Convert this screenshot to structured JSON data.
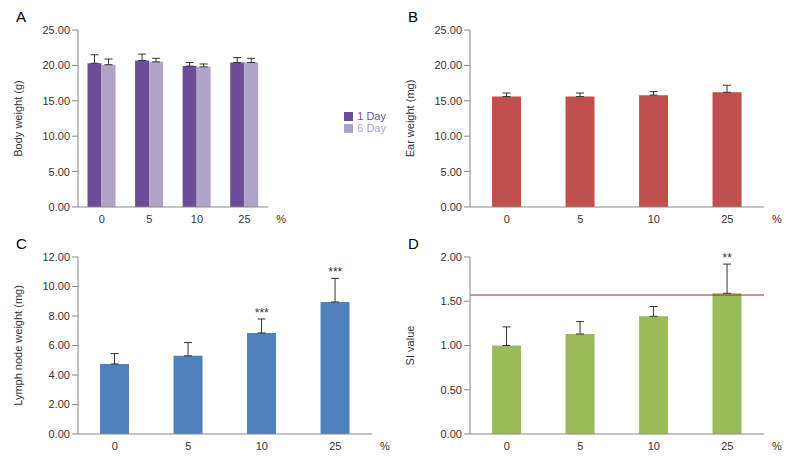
{
  "chart_data": [
    {
      "type": "bar",
      "title": "A",
      "y_label": "Body weight (g)",
      "x_label": "%",
      "categories": [
        "0",
        "5",
        "10",
        "25"
      ],
      "series": [
        {
          "name": "1 Day",
          "color": "#6b4e97",
          "values": [
            20.3,
            20.7,
            19.9,
            20.4
          ],
          "errors": [
            1.2,
            0.9,
            0.5,
            0.7
          ]
        },
        {
          "name": "6 Day",
          "color": "#b0a3c8",
          "values": [
            20.1,
            20.5,
            19.8,
            20.4
          ],
          "errors": [
            0.8,
            0.5,
            0.4,
            0.6
          ]
        }
      ],
      "ylim": [
        0,
        25
      ],
      "yticks": [
        {
          "value": 0,
          "label": "0.00"
        },
        {
          "value": 5,
          "label": "5.00"
        },
        {
          "value": 10,
          "label": "10.00"
        },
        {
          "value": 15,
          "label": "15.00"
        },
        {
          "value": 20,
          "label": "20.00"
        },
        {
          "value": 25,
          "label": "25.00"
        }
      ],
      "legend": "right"
    },
    {
      "type": "bar",
      "title": "B",
      "y_label": "Ear weight (mg)",
      "x_label": "%",
      "categories": [
        "0",
        "5",
        "10",
        "25"
      ],
      "color": "#c0504d",
      "values": [
        15.6,
        15.6,
        15.8,
        16.2
      ],
      "errors": [
        0.5,
        0.5,
        0.5,
        1.0
      ],
      "ylim": [
        0,
        25
      ],
      "yticks": [
        {
          "value": 0,
          "label": "0.00"
        },
        {
          "value": 5,
          "label": "5.00"
        },
        {
          "value": 10,
          "label": "10.00"
        },
        {
          "value": 15,
          "label": "15.00"
        },
        {
          "value": 20,
          "label": "20.00"
        },
        {
          "value": 25,
          "label": "25.00"
        }
      ]
    },
    {
      "type": "bar",
      "title": "C",
      "y_label": "Lymph node weight (mg)",
      "x_label": "%",
      "categories": [
        "0",
        "5",
        "10",
        "25"
      ],
      "color": "#4f81bd",
      "values": [
        4.75,
        5.3,
        6.85,
        8.95
      ],
      "errors": [
        0.7,
        0.9,
        0.95,
        1.6
      ],
      "ylim": [
        0,
        12
      ],
      "yticks": [
        {
          "value": 0,
          "label": "0.00"
        },
        {
          "value": 2,
          "label": "2.00"
        },
        {
          "value": 4,
          "label": "4.00"
        },
        {
          "value": 6,
          "label": "6.00"
        },
        {
          "value": 8,
          "label": "8.00"
        },
        {
          "value": 10,
          "label": "10.00"
        },
        {
          "value": 12,
          "label": "12.00"
        }
      ],
      "annotations": [
        {
          "category": "10",
          "text": "***"
        },
        {
          "category": "25",
          "text": "***"
        }
      ]
    },
    {
      "type": "bar",
      "title": "D",
      "y_label": "SI value",
      "x_label": "%",
      "categories": [
        "0",
        "5",
        "10",
        "25"
      ],
      "color": "#9bbb59",
      "values": [
        1.0,
        1.13,
        1.33,
        1.59
      ],
      "errors": [
        0.21,
        0.14,
        0.11,
        0.33
      ],
      "ylim": [
        0,
        2
      ],
      "yticks": [
        {
          "value": 0,
          "label": "0.00"
        },
        {
          "value": 0.5,
          "label": "0.50"
        },
        {
          "value": 1,
          "label": "1.00"
        },
        {
          "value": 1.5,
          "label": "1.50"
        },
        {
          "value": 2,
          "label": "2.00"
        }
      ],
      "threshold": 1.57,
      "annotations": [
        {
          "category": "25",
          "text": "**"
        }
      ]
    }
  ]
}
